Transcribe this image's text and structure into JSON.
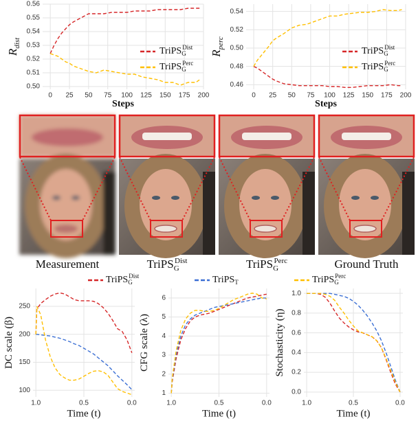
{
  "chart_data": [
    {
      "type": "line",
      "ylabel": "R",
      "ylabel_sub": "dist",
      "xlabel": "Steps",
      "grid": true,
      "dashed": true,
      "legend": "center right",
      "x": [
        0,
        5,
        10,
        15,
        20,
        25,
        30,
        40,
        50,
        60,
        70,
        80,
        90,
        100,
        110,
        120,
        130,
        140,
        150,
        160,
        170,
        180,
        190,
        195
      ],
      "xlim": [
        -10,
        200
      ],
      "xticks": [
        0,
        25,
        50,
        75,
        100,
        125,
        150,
        175,
        200
      ],
      "ylim": [
        0.498,
        0.56
      ],
      "yticks": [
        {
          "value": 0.5,
          "label": "0.50"
        },
        0.51,
        0.52,
        0.53,
        0.54,
        0.55,
        0.56
      ],
      "series": [
        {
          "name": "TriPS",
          "name_sub": "G",
          "name_sup": "Dist",
          "color": "#d62728",
          "values": [
            0.524,
            0.53,
            0.535,
            0.539,
            0.542,
            0.545,
            0.547,
            0.55,
            0.553,
            0.553,
            0.553,
            0.554,
            0.554,
            0.554,
            0.555,
            0.555,
            0.555,
            0.556,
            0.556,
            0.556,
            0.556,
            0.557,
            0.557,
            0.557
          ]
        },
        {
          "name": "TriPS",
          "name_sub": "G",
          "name_sup": "Perc",
          "color": "#ffbf00",
          "values": [
            0.524,
            0.523,
            0.522,
            0.52,
            0.518,
            0.517,
            0.515,
            0.513,
            0.511,
            0.51,
            0.512,
            0.511,
            0.51,
            0.509,
            0.509,
            0.507,
            0.506,
            0.505,
            0.503,
            0.503,
            0.501,
            0.503,
            0.503,
            0.505
          ]
        }
      ]
    },
    {
      "type": "line",
      "ylabel": "R",
      "ylabel_sub": "perc",
      "xlabel": "Steps",
      "grid": true,
      "dashed": true,
      "legend": "center right",
      "x": [
        0,
        5,
        10,
        15,
        20,
        25,
        30,
        40,
        50,
        60,
        70,
        80,
        90,
        100,
        110,
        120,
        130,
        140,
        150,
        160,
        170,
        180,
        190,
        195
      ],
      "xlim": [
        -10,
        200
      ],
      "xticks": [
        0,
        25,
        50,
        75,
        100,
        125,
        150,
        175,
        200
      ],
      "ylim": [
        0.455,
        0.548
      ],
      "yticks": [
        0.46,
        0.48,
        {
          "value": 0.5,
          "label": "0.50"
        },
        0.52,
        0.54
      ],
      "series": [
        {
          "name": "TriPS",
          "name_sub": "G",
          "name_sup": "Dist",
          "color": "#d62728",
          "values": [
            0.48,
            0.478,
            0.475,
            0.472,
            0.469,
            0.466,
            0.464,
            0.461,
            0.46,
            0.459,
            0.459,
            0.459,
            0.459,
            0.458,
            0.458,
            0.457,
            0.457,
            0.458,
            0.459,
            0.459,
            0.459,
            0.46,
            0.459,
            0.459
          ]
        },
        {
          "name": "TriPS",
          "name_sub": "G",
          "name_sup": "Perc",
          "color": "#ffbf00",
          "values": [
            0.48,
            0.487,
            0.492,
            0.497,
            0.502,
            0.508,
            0.511,
            0.516,
            0.522,
            0.525,
            0.526,
            0.529,
            0.532,
            0.535,
            0.535,
            0.537,
            0.538,
            0.539,
            0.539,
            0.54,
            0.542,
            0.541,
            0.541,
            0.542
          ]
        }
      ]
    },
    {
      "type": "line",
      "ylabel": "DC scale (β)",
      "xlabel": "Time (t)",
      "grid": true,
      "dashed": true,
      "legend": "above",
      "x": [
        1.0,
        0.99,
        0.95,
        0.9,
        0.85,
        0.8,
        0.75,
        0.7,
        0.65,
        0.6,
        0.55,
        0.5,
        0.45,
        0.4,
        0.35,
        0.3,
        0.25,
        0.2,
        0.15,
        0.1,
        0.05,
        0.0
      ],
      "xlim": [
        1.03,
        -0.03
      ],
      "xticks": [
        {
          "value": 1,
          "label": "1.0"
        },
        0.5,
        {
          "value": 0,
          "label": "0.0"
        }
      ],
      "ylim": [
        88,
        282
      ],
      "yticks": [
        100,
        150,
        200,
        250
      ],
      "series": [
        {
          "name": "TriPS",
          "name_sub": "G",
          "name_sup": "Dist",
          "color": "#d62728",
          "values": [
            200,
            245,
            255,
            262,
            268,
            272,
            274,
            272,
            267,
            262,
            260,
            260,
            260,
            259,
            255,
            248,
            238,
            225,
            210,
            205,
            190,
            167
          ]
        },
        {
          "name": "TriPS",
          "name_sub": "T",
          "color": "#3b6fd4",
          "values": [
            200,
            200,
            199,
            198,
            197,
            195,
            193,
            190,
            187,
            183,
            180,
            175,
            170,
            165,
            158,
            151,
            144,
            135,
            126,
            118,
            110,
            101
          ]
        },
        {
          "name": "TriPS",
          "name_sub": "G",
          "name_sup": "Perc",
          "color": "#ffbf00",
          "values": [
            200,
            250,
            235,
            190,
            160,
            140,
            128,
            122,
            118,
            118,
            120,
            125,
            130,
            134,
            135,
            133,
            127,
            115,
            103,
            98,
            95,
            92
          ]
        }
      ]
    },
    {
      "type": "line",
      "ylabel": "CFG scale (λ)",
      "xlabel": "Time (t)",
      "grid": true,
      "dashed": true,
      "x": [
        1.0,
        0.99,
        0.95,
        0.9,
        0.85,
        0.8,
        0.75,
        0.7,
        0.65,
        0.6,
        0.55,
        0.5,
        0.45,
        0.4,
        0.35,
        0.3,
        0.25,
        0.2,
        0.15,
        0.1,
        0.05,
        0.0
      ],
      "xlim": [
        1.03,
        -0.03
      ],
      "xticks": [
        {
          "value": 1,
          "label": "1.0"
        },
        0.5,
        {
          "value": 0,
          "label": "0.0"
        }
      ],
      "ylim": [
        0.8,
        6.5
      ],
      "yticks": [
        1,
        2,
        3,
        4,
        5,
        6
      ],
      "series": [
        {
          "color": "#d62728",
          "values": [
            1.0,
            1.6,
            2.8,
            3.8,
            4.4,
            4.8,
            5.0,
            5.1,
            5.15,
            5.2,
            5.3,
            5.4,
            5.5,
            5.6,
            5.7,
            5.8,
            5.9,
            6.0,
            6.05,
            6.1,
            6.15,
            6.2
          ]
        },
        {
          "color": "#3b6fd4",
          "values": [
            1.0,
            1.7,
            3.0,
            4.0,
            4.6,
            4.9,
            5.1,
            5.2,
            5.3,
            5.4,
            5.5,
            5.55,
            5.6,
            5.65,
            5.7,
            5.75,
            5.8,
            5.85,
            5.9,
            5.95,
            6.0,
            6.0
          ]
        },
        {
          "color": "#ffbf00",
          "values": [
            1.0,
            1.8,
            3.2,
            4.3,
            4.9,
            5.2,
            5.35,
            5.35,
            5.3,
            5.3,
            5.35,
            5.45,
            5.6,
            5.75,
            5.9,
            6.0,
            6.1,
            6.2,
            6.25,
            6.2,
            6.0,
            5.95
          ]
        }
      ]
    },
    {
      "type": "line",
      "ylabel": "Stochasticity (η)",
      "xlabel": "Time (t)",
      "grid": true,
      "dashed": true,
      "x": [
        1.0,
        0.99,
        0.95,
        0.9,
        0.85,
        0.8,
        0.75,
        0.7,
        0.65,
        0.6,
        0.55,
        0.5,
        0.45,
        0.4,
        0.35,
        0.3,
        0.25,
        0.2,
        0.15,
        0.1,
        0.05,
        0.0
      ],
      "xlim": [
        1.03,
        -0.03
      ],
      "xticks": [
        {
          "value": 1,
          "label": "1.0"
        },
        0.5,
        {
          "value": 0,
          "label": "0.0"
        }
      ],
      "ylim": [
        -0.05,
        1.05
      ],
      "yticks": [
        {
          "value": 0,
          "label": "0.0"
        },
        0.2,
        0.4,
        0.6,
        0.8,
        {
          "value": 1,
          "label": "1.0"
        }
      ],
      "series": [
        {
          "color": "#d62728",
          "values": [
            1,
            1,
            1,
            1,
            0.99,
            0.96,
            0.9,
            0.82,
            0.75,
            0.7,
            0.66,
            0.63,
            0.61,
            0.6,
            0.58,
            0.56,
            0.52,
            0.45,
            0.33,
            0.2,
            0.08,
            0
          ]
        },
        {
          "color": "#3b6fd4",
          "values": [
            1,
            1,
            1,
            1,
            1,
            1,
            1,
            0.99,
            0.98,
            0.97,
            0.95,
            0.92,
            0.88,
            0.83,
            0.77,
            0.7,
            0.62,
            0.52,
            0.4,
            0.26,
            0.12,
            0
          ]
        },
        {
          "color": "#ffbf00",
          "values": [
            1,
            1,
            1,
            1,
            1,
            0.99,
            0.97,
            0.93,
            0.86,
            0.8,
            0.73,
            0.67,
            0.62,
            0.6,
            0.58,
            0.56,
            0.52,
            0.45,
            0.34,
            0.22,
            0.1,
            0
          ]
        }
      ]
    }
  ],
  "image_panel": {
    "captions": [
      {
        "text": "Measurement"
      },
      {
        "text": "TriPS",
        "sub": "G",
        "sup": "Dist"
      },
      {
        "text": "TriPS",
        "sub": "G",
        "sup": "Perc"
      },
      {
        "text": "Ground Truth"
      }
    ]
  }
}
